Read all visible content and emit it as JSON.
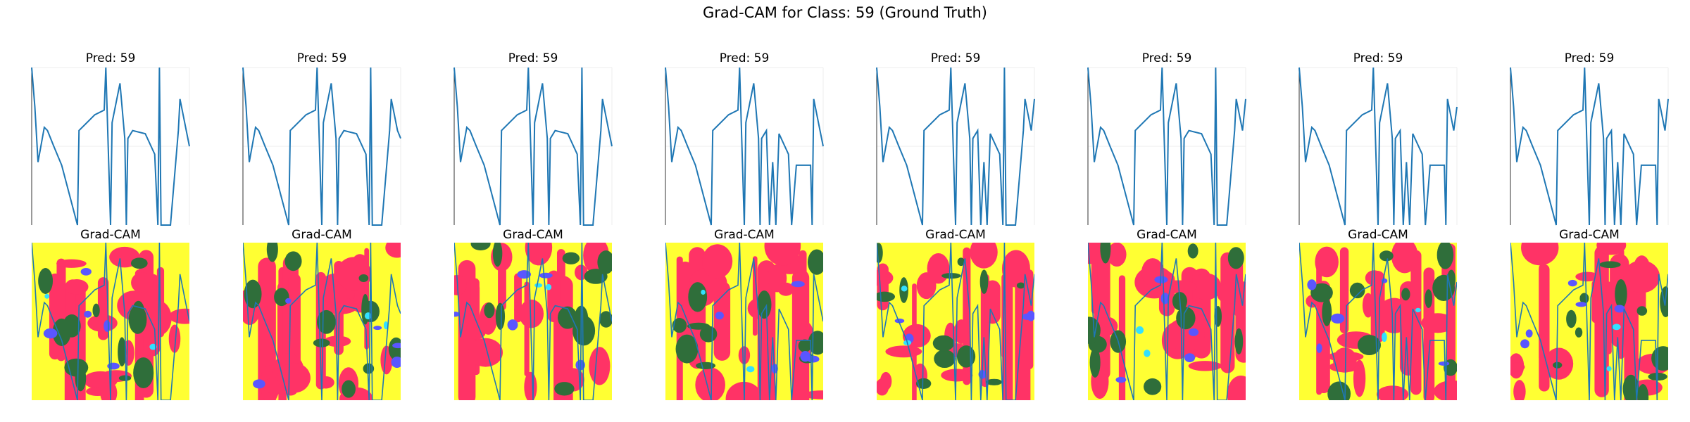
{
  "title": "Grad-CAM for Class: 59 (Ground Truth)",
  "chart_data": {
    "type": "line",
    "title": "Grad-CAM for Class: 59 (Ground Truth)",
    "grid": true,
    "line_color": "#1f77b4",
    "heatmap_colors": [
      "#ffff33",
      "#ff3366",
      "#2f6e3a",
      "#5a56ff",
      "#33e0ff"
    ],
    "ylim": [
      0,
      1
    ],
    "panels": [
      {
        "pred_title": "Pred: 59",
        "cam_title": "Grad-CAM",
        "x": [
          0,
          2,
          4,
          8,
          10,
          14,
          19,
          29,
          30,
          40,
          46,
          47,
          50,
          51,
          56,
          59,
          60,
          61,
          64,
          72,
          78,
          80,
          81,
          82,
          87,
          88,
          93,
          94,
          98,
          100
        ],
        "y": [
          1.0,
          0.75,
          0.4,
          0.62,
          0.6,
          0.5,
          0.38,
          0.0,
          0.6,
          0.7,
          0.73,
          1.0,
          0.0,
          0.65,
          0.9,
          0.55,
          0.0,
          0.55,
          0.6,
          0.58,
          0.45,
          0.0,
          1.0,
          0.0,
          0.0,
          0.0,
          0.6,
          0.8,
          0.6,
          0.5
        ]
      },
      {
        "pred_title": "Pred: 59",
        "cam_title": "Grad-CAM",
        "x": [
          0,
          2,
          4,
          8,
          10,
          14,
          19,
          29,
          30,
          40,
          46,
          47,
          50,
          51,
          56,
          59,
          60,
          61,
          64,
          72,
          78,
          80,
          81,
          82,
          87,
          88,
          93,
          94,
          98,
          100
        ],
        "y": [
          1.0,
          0.75,
          0.4,
          0.62,
          0.6,
          0.5,
          0.38,
          0.0,
          0.6,
          0.7,
          0.73,
          1.0,
          0.0,
          0.65,
          0.9,
          0.55,
          0.0,
          0.55,
          0.6,
          0.58,
          0.45,
          0.0,
          1.0,
          0.0,
          0.0,
          0.0,
          0.6,
          0.8,
          0.6,
          0.55
        ]
      },
      {
        "pred_title": "Pred: 59",
        "cam_title": "Grad-CAM",
        "x": [
          0,
          2,
          4,
          8,
          10,
          14,
          19,
          29,
          30,
          40,
          46,
          47,
          50,
          51,
          56,
          59,
          60,
          61,
          64,
          72,
          78,
          80,
          81,
          82,
          87,
          88,
          93,
          94,
          98,
          100
        ],
        "y": [
          1.0,
          0.75,
          0.4,
          0.62,
          0.6,
          0.5,
          0.38,
          0.0,
          0.6,
          0.7,
          0.73,
          1.0,
          0.0,
          0.65,
          0.9,
          0.55,
          0.0,
          0.55,
          0.6,
          0.58,
          0.45,
          0.0,
          1.0,
          0.0,
          0.0,
          0.0,
          0.6,
          0.8,
          0.6,
          0.5
        ]
      },
      {
        "pred_title": "Pred: 59",
        "cam_title": "Grad-CAM",
        "x": [
          0,
          2,
          4,
          8,
          10,
          14,
          19,
          29,
          30,
          40,
          46,
          47,
          50,
          51,
          56,
          59,
          60,
          61,
          64,
          66,
          68,
          70,
          72,
          78,
          80,
          83,
          92,
          93,
          94,
          98,
          100
        ],
        "y": [
          1.0,
          0.75,
          0.4,
          0.62,
          0.6,
          0.5,
          0.38,
          0.0,
          0.6,
          0.7,
          0.73,
          1.0,
          0.0,
          0.65,
          0.9,
          0.55,
          0.0,
          0.55,
          0.6,
          0.0,
          0.4,
          0.0,
          0.58,
          0.45,
          0.0,
          0.38,
          0.38,
          0.0,
          0.8,
          0.6,
          0.5
        ]
      },
      {
        "pred_title": "Pred: 59",
        "cam_title": "Grad-CAM",
        "x": [
          0,
          2,
          4,
          8,
          10,
          14,
          19,
          29,
          30,
          40,
          46,
          47,
          50,
          51,
          56,
          59,
          60,
          61,
          64,
          66,
          68,
          70,
          72,
          78,
          80,
          81,
          82,
          87,
          88,
          93,
          94,
          98,
          100
        ],
        "y": [
          1.0,
          0.75,
          0.4,
          0.62,
          0.6,
          0.5,
          0.38,
          0.0,
          0.6,
          0.7,
          0.73,
          1.0,
          0.0,
          0.65,
          0.9,
          0.55,
          0.0,
          0.55,
          0.6,
          0.0,
          0.4,
          0.0,
          0.58,
          0.45,
          0.0,
          1.0,
          0.0,
          0.0,
          0.0,
          0.6,
          0.8,
          0.6,
          0.8
        ]
      },
      {
        "pred_title": "Pred: 59",
        "cam_title": "Grad-CAM",
        "x": [
          0,
          2,
          4,
          8,
          10,
          14,
          19,
          29,
          30,
          40,
          46,
          47,
          50,
          51,
          56,
          59,
          60,
          61,
          64,
          72,
          78,
          80,
          81,
          82,
          87,
          88,
          93,
          94,
          98,
          100
        ],
        "y": [
          1.0,
          0.75,
          0.4,
          0.62,
          0.6,
          0.5,
          0.38,
          0.0,
          0.6,
          0.7,
          0.73,
          1.0,
          0.0,
          0.65,
          0.9,
          0.55,
          0.0,
          0.55,
          0.6,
          0.58,
          0.45,
          0.0,
          1.0,
          0.0,
          0.0,
          0.0,
          0.6,
          0.8,
          0.6,
          0.8
        ]
      },
      {
        "pred_title": "Pred: 59",
        "cam_title": "Grad-CAM",
        "x": [
          0,
          2,
          4,
          8,
          10,
          14,
          19,
          29,
          30,
          40,
          46,
          47,
          50,
          51,
          56,
          59,
          60,
          61,
          64,
          66,
          68,
          70,
          72,
          78,
          80,
          83,
          92,
          93,
          94,
          98,
          100
        ],
        "y": [
          1.0,
          0.75,
          0.4,
          0.62,
          0.6,
          0.5,
          0.38,
          0.0,
          0.6,
          0.7,
          0.73,
          1.0,
          0.0,
          0.65,
          0.9,
          0.55,
          0.0,
          0.55,
          0.6,
          0.0,
          0.4,
          0.0,
          0.58,
          0.45,
          0.0,
          0.38,
          0.38,
          0.0,
          0.8,
          0.6,
          0.75
        ]
      },
      {
        "pred_title": "Pred: 59",
        "cam_title": "Grad-CAM",
        "x": [
          0,
          2,
          4,
          8,
          10,
          14,
          19,
          29,
          30,
          40,
          46,
          47,
          50,
          51,
          56,
          59,
          60,
          61,
          64,
          66,
          68,
          70,
          72,
          78,
          80,
          83,
          92,
          93,
          94,
          98,
          100
        ],
        "y": [
          1.0,
          0.75,
          0.4,
          0.62,
          0.6,
          0.5,
          0.38,
          0.0,
          0.6,
          0.7,
          0.73,
          1.0,
          0.0,
          0.65,
          0.9,
          0.55,
          0.0,
          0.55,
          0.6,
          0.0,
          0.4,
          0.0,
          0.58,
          0.45,
          0.0,
          0.38,
          0.38,
          0.0,
          0.8,
          0.6,
          0.8
        ]
      }
    ]
  }
}
